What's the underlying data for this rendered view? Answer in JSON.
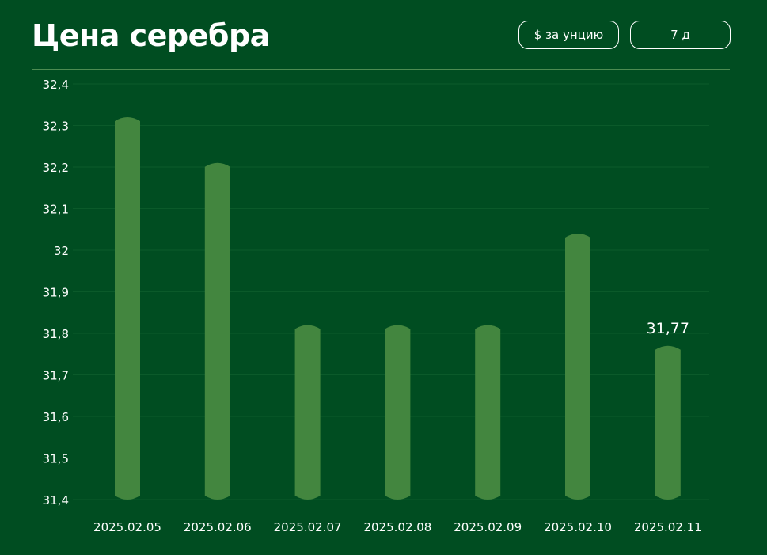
{
  "header": {
    "title": "Цена серебра",
    "unit_button": "$ за унцию",
    "period_button": "7 д"
  },
  "colors": {
    "background": "#004d21",
    "bar": "#43863f",
    "gridline": "#0b5a2a",
    "divider": "#4d8c52",
    "text": "#ffffff"
  },
  "chart_data": {
    "type": "bar",
    "categories": [
      "2025.02.05",
      "2025.02.06",
      "2025.02.07",
      "2025.02.08",
      "2025.02.09",
      "2025.02.10",
      "2025.02.11"
    ],
    "values": [
      32.32,
      32.21,
      31.82,
      31.82,
      31.82,
      32.04,
      31.77
    ],
    "yticks": [
      "31,4",
      "31,5",
      "31,6",
      "31,7",
      "31,8",
      "31,9",
      "32",
      "32,1",
      "32,2",
      "32,3",
      "32,4"
    ],
    "ylim": [
      31.4,
      32.4
    ],
    "grid": true,
    "data_labels": [
      {
        "index": 6,
        "text": "31,77"
      }
    ]
  }
}
